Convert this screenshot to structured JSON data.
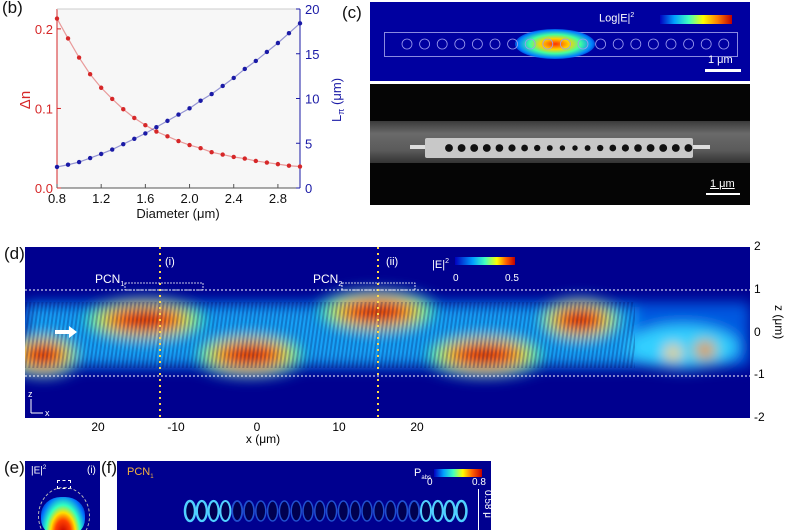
{
  "panels": {
    "b": "(b)",
    "c": "(c)",
    "d": "(d)",
    "e": "(e)",
    "f": "(f)"
  },
  "chart_data": [
    {
      "type": "scatter",
      "panel": "b",
      "xlabel": "Diameter (μm)",
      "ylabel_left": "Δn",
      "ylabel_right": "L",
      "ylabel_right_sub": "π",
      "ylabel_right_unit": " (μm)",
      "xlim": [
        0.8,
        3.0
      ],
      "ylim_left": [
        0,
        0.225
      ],
      "ylim_right": [
        0,
        20
      ],
      "xticks": [
        "0.8",
        "1.2",
        "1.6",
        "2.0",
        "2.4",
        "2.8"
      ],
      "xtick_values": [
        0.8,
        1.2,
        1.6,
        2.0,
        2.4,
        2.8
      ],
      "yticks_left": [
        "0.0",
        "0.1",
        "0.2"
      ],
      "ytick_left_values": [
        0,
        0.1,
        0.2
      ],
      "yticks_right": [
        "0",
        "5",
        "10",
        "15",
        "20"
      ],
      "ytick_right_values": [
        0,
        5,
        10,
        15,
        20
      ],
      "x": [
        0.8,
        0.9,
        1.0,
        1.1,
        1.2,
        1.3,
        1.4,
        1.5,
        1.6,
        1.7,
        1.8,
        1.9,
        2.0,
        2.1,
        2.2,
        2.3,
        2.4,
        2.5,
        2.6,
        2.7,
        2.8,
        2.9,
        3.0
      ],
      "series": [
        {
          "name": "Δn",
          "axis": "left",
          "color": "#d62728",
          "values": [
            0.213,
            0.188,
            0.164,
            0.143,
            0.126,
            0.112,
            0.099,
            0.088,
            0.079,
            0.071,
            0.065,
            0.059,
            0.054,
            0.05,
            0.045,
            0.042,
            0.039,
            0.037,
            0.034,
            0.032,
            0.03,
            0.028,
            0.027
          ]
        },
        {
          "name": "Lπ",
          "axis": "right",
          "color": "#1a1aa6",
          "values": [
            2.35,
            2.6,
            2.9,
            3.35,
            3.8,
            4.3,
            4.9,
            5.5,
            6.1,
            6.8,
            7.5,
            8.2,
            8.9,
            9.75,
            10.5,
            11.4,
            12.3,
            13.3,
            14.2,
            15.2,
            16.2,
            17.3,
            18.4
          ]
        }
      ]
    },
    {
      "type": "heatmap",
      "panel": "d",
      "xlabel": "x (μm)",
      "ylabel": "z (μm)",
      "xticks": [
        "20",
        "-10",
        "0",
        "10",
        "20"
      ],
      "yticks": [
        "2",
        "1",
        "0",
        "-1",
        "-2"
      ],
      "ytick_values": [
        2,
        1,
        0,
        -1,
        -2
      ],
      "colorbar_label": "|E|",
      "colorbar_sup": "2",
      "colorbar_range": [
        "0",
        "0.5"
      ],
      "annotations": {
        "pcn1": "PCN",
        "pcn1_sub": "1",
        "pcn2": "PCN",
        "pcn2_sub": "2",
        "marker_i": "(i)",
        "marker_ii": "(ii)",
        "axis_z": "z",
        "axis_x": "x"
      }
    }
  ],
  "panel_c": {
    "colorbar_label": "Log|E|",
    "colorbar_sup": "2",
    "scale_top": "1 μm",
    "scale_bottom": "1 μm"
  },
  "panel_e": {
    "label": "|E|",
    "sup": "2",
    "marker": "(i)"
  },
  "panel_f": {
    "label": "PCN",
    "label_sub": "1",
    "colorbar_label": "P",
    "colorbar_sub": "abs",
    "range_min": "0",
    "range_max": "0.8",
    "scale": "0.58 μ"
  },
  "colors": {
    "field_bg": "#00008f",
    "red": "#d62728",
    "blue": "#1a1aa6"
  }
}
